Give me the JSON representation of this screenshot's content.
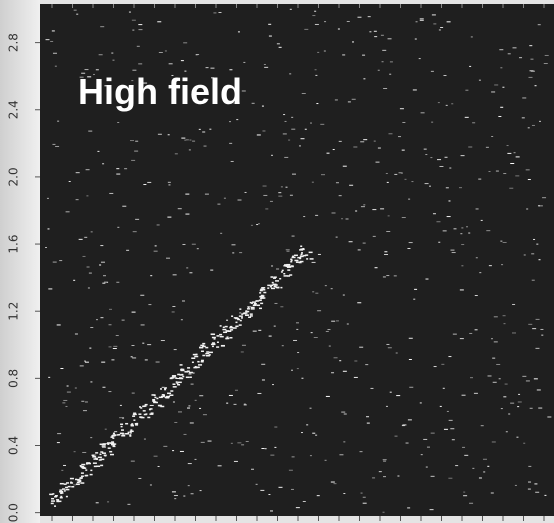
{
  "chart_data": {
    "type": "scatter",
    "annotation": "High field",
    "categories": [
      null,
      null,
      null,
      null,
      null,
      null,
      null,
      null,
      null,
      null,
      null,
      null,
      null,
      null,
      null,
      null,
      null,
      null,
      null,
      null,
      null,
      null,
      null,
      null,
      null,
      null
    ],
    "values": [
      0.08,
      0.14,
      0.2,
      0.26,
      0.32,
      0.38,
      0.44,
      0.5,
      0.56,
      0.61,
      0.67,
      0.73,
      0.79,
      0.85,
      0.91,
      0.97,
      1.03,
      1.08,
      1.14,
      1.2,
      1.26,
      1.32,
      1.38,
      1.44,
      1.5,
      1.55
    ],
    "color": "#f2f2f2",
    "ylim": [
      -0.02,
      3.03
    ],
    "yticks": [
      {
        "value": 0,
        "label": "0.0"
      },
      0.4,
      0.8,
      1.2,
      1.6,
      {
        "value": 2,
        "label": "2.0"
      },
      2.4,
      2.8
    ]
  }
}
